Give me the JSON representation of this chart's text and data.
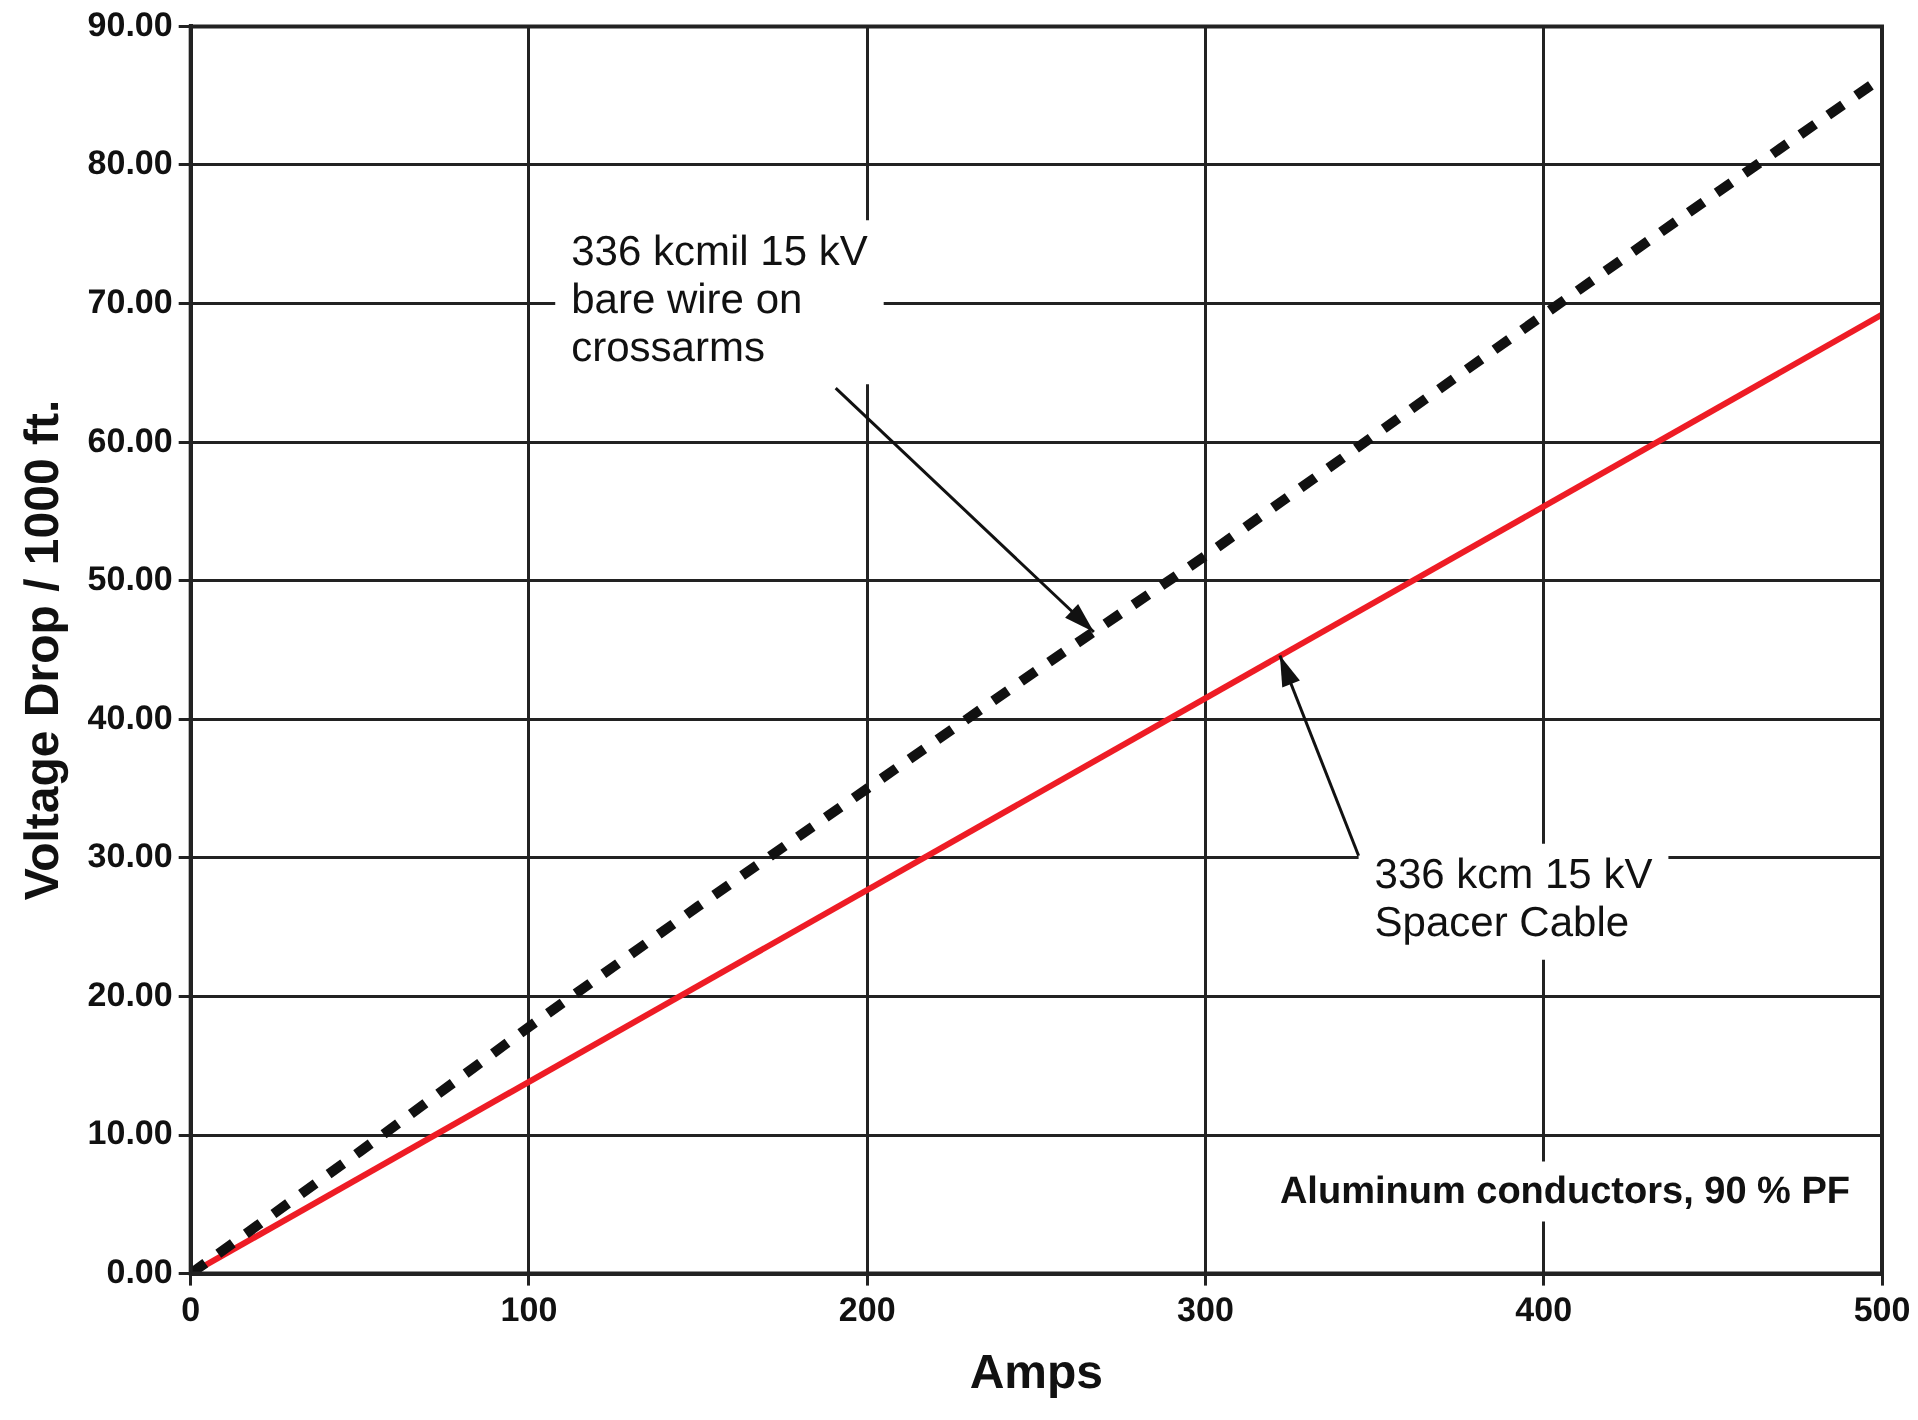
{
  "chart_data": {
    "type": "line",
    "xlabel": "Amps",
    "ylabel": "Voltage Drop / 1000 ft.",
    "xlim": [
      0,
      500
    ],
    "xticks": [
      0,
      100,
      200,
      300,
      400,
      500
    ],
    "ylim": [
      0,
      90
    ],
    "yticks": [
      {
        "value": 0,
        "label": "0.00"
      },
      {
        "value": 10,
        "label": "10.00"
      },
      {
        "value": 20,
        "label": "20.00"
      },
      {
        "value": 30,
        "label": "30.00"
      },
      {
        "value": 40,
        "label": "40.00"
      },
      {
        "value": 50,
        "label": "50.00"
      },
      {
        "value": 60,
        "label": "60.00"
      },
      {
        "value": 70,
        "label": "70.00"
      },
      {
        "value": 80,
        "label": "80.00"
      },
      {
        "value": 90,
        "label": "90.00"
      }
    ],
    "grid": true,
    "legend": false,
    "marker": "none",
    "series": [
      {
        "color": "#111111",
        "line_style": "dashed",
        "x": [
          0,
          50,
          100,
          150,
          200,
          250,
          300,
          350,
          400,
          450,
          500
        ],
        "values": [
          0,
          8.8,
          17.8,
          26.5,
          35,
          43.5,
          51.8,
          60.5,
          69.2,
          77.8,
          86.3
        ]
      },
      {
        "color": "#ee1c25",
        "line_style": "solid",
        "x": [
          0,
          500
        ],
        "values": [
          0,
          69.2
        ]
      }
    ],
    "annotations": [
      {
        "text": "336 kcmil 15 kV\nbare wire on\ncrossarms",
        "x": 267,
        "y": 46.3
      },
      {
        "text": "336 kcm 15 kV\nSpacer Cable",
        "x": 322,
        "y": 44.6
      },
      "Aluminum conductors, 90 % PF"
    ]
  }
}
